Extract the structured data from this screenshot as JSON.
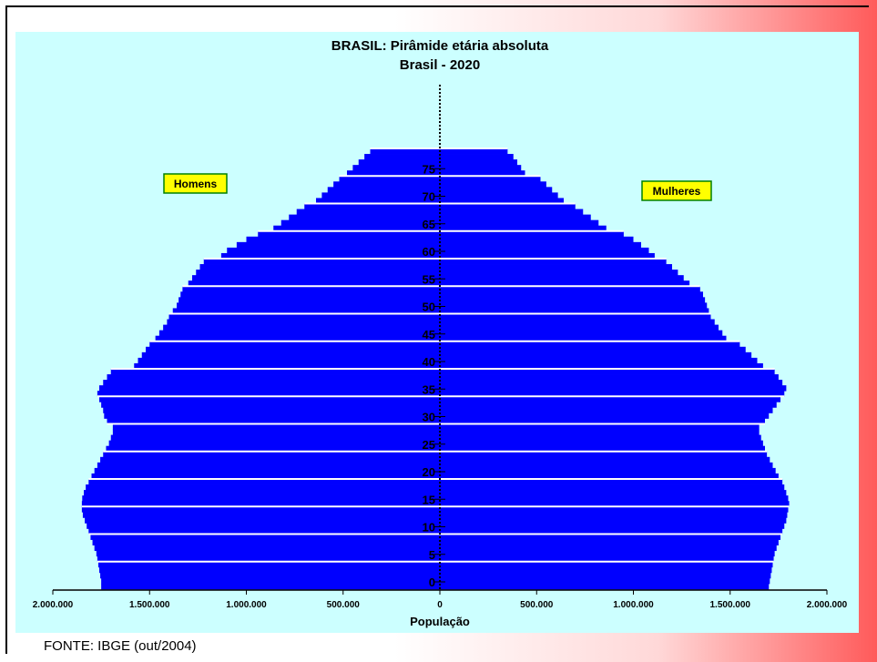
{
  "source": "FONTE: IBGE (out/2004)",
  "colors": {
    "bars": "#0000ff",
    "panel": "#ccffff",
    "legend_box": "#ffff00",
    "legend_border": "#008000",
    "grid": "#ffffff"
  },
  "chart_data": {
    "type": "bar",
    "orientation": "population-pyramid",
    "title": "BRASIL: Pirâmide etária absoluta",
    "subtitle": "Brasil - 2020",
    "xlabel": "População",
    "xlim": [
      -2000000,
      2000000
    ],
    "x_tick_values": [
      -2000000,
      -1500000,
      -1000000,
      -500000,
      0,
      500000,
      1000000,
      1500000,
      2000000
    ],
    "x_tick_labels": [
      "2.000.000",
      "1.500.000",
      "1.000.000",
      "500.000",
      "0",
      "500.000",
      "1.000.000",
      "1.500.000",
      "2.000.000"
    ],
    "y_tick_values": [
      0,
      5,
      10,
      15,
      20,
      25,
      30,
      35,
      40,
      45,
      50,
      55,
      60,
      65,
      70,
      75
    ],
    "y_tick_labels": [
      "0",
      "5",
      "10",
      "15",
      "20",
      "25",
      "30",
      "35",
      "40",
      "45",
      "50",
      "55",
      "60",
      "65",
      "70",
      "75"
    ],
    "ages": [
      0,
      1,
      2,
      3,
      4,
      5,
      6,
      7,
      8,
      9,
      10,
      11,
      12,
      13,
      14,
      15,
      16,
      17,
      18,
      19,
      20,
      21,
      22,
      23,
      24,
      25,
      26,
      27,
      28,
      29,
      30,
      31,
      32,
      33,
      34,
      35,
      36,
      37,
      38,
      39,
      40,
      41,
      42,
      43,
      44,
      45,
      46,
      47,
      48,
      49,
      50,
      51,
      52,
      53,
      54,
      55,
      56,
      57,
      58,
      59,
      60,
      61,
      62,
      63,
      64,
      65,
      66,
      67,
      68,
      69,
      70,
      71,
      72,
      73,
      74,
      75,
      76,
      77,
      78,
      79
    ],
    "series": [
      {
        "name": "Homens",
        "side": "left",
        "values": [
          1750000,
          1750000,
          1755000,
          1760000,
          1765000,
          1770000,
          1775000,
          1785000,
          1795000,
          1805000,
          1815000,
          1825000,
          1835000,
          1845000,
          1850000,
          1850000,
          1848000,
          1840000,
          1830000,
          1815000,
          1800000,
          1785000,
          1770000,
          1755000,
          1740000,
          1725000,
          1710000,
          1700000,
          1690000,
          1690000,
          1720000,
          1735000,
          1740000,
          1750000,
          1760000,
          1770000,
          1760000,
          1740000,
          1720000,
          1700000,
          1580000,
          1560000,
          1540000,
          1520000,
          1500000,
          1470000,
          1450000,
          1430000,
          1410000,
          1400000,
          1380000,
          1360000,
          1350000,
          1340000,
          1330000,
          1300000,
          1280000,
          1260000,
          1240000,
          1220000,
          1130000,
          1100000,
          1050000,
          1000000,
          940000,
          860000,
          820000,
          780000,
          740000,
          700000,
          640000,
          610000,
          580000,
          550000,
          520000,
          480000,
          450000,
          420000,
          390000,
          360000
        ]
      },
      {
        "name": "Mulheres",
        "side": "right",
        "values": [
          1700000,
          1705000,
          1710000,
          1715000,
          1720000,
          1725000,
          1730000,
          1740000,
          1750000,
          1760000,
          1770000,
          1780000,
          1790000,
          1795000,
          1800000,
          1805000,
          1800000,
          1790000,
          1780000,
          1770000,
          1750000,
          1735000,
          1720000,
          1705000,
          1690000,
          1680000,
          1670000,
          1660000,
          1650000,
          1650000,
          1680000,
          1700000,
          1720000,
          1740000,
          1760000,
          1780000,
          1790000,
          1770000,
          1750000,
          1730000,
          1670000,
          1640000,
          1610000,
          1580000,
          1550000,
          1480000,
          1460000,
          1440000,
          1420000,
          1400000,
          1390000,
          1380000,
          1370000,
          1360000,
          1345000,
          1290000,
          1260000,
          1230000,
          1200000,
          1170000,
          1110000,
          1080000,
          1040000,
          1000000,
          950000,
          860000,
          820000,
          780000,
          740000,
          700000,
          640000,
          610000,
          580000,
          550000,
          520000,
          440000,
          420000,
          400000,
          380000,
          350000
        ]
      }
    ],
    "legend": [
      "Homens",
      "Mulheres"
    ],
    "grid": true
  }
}
